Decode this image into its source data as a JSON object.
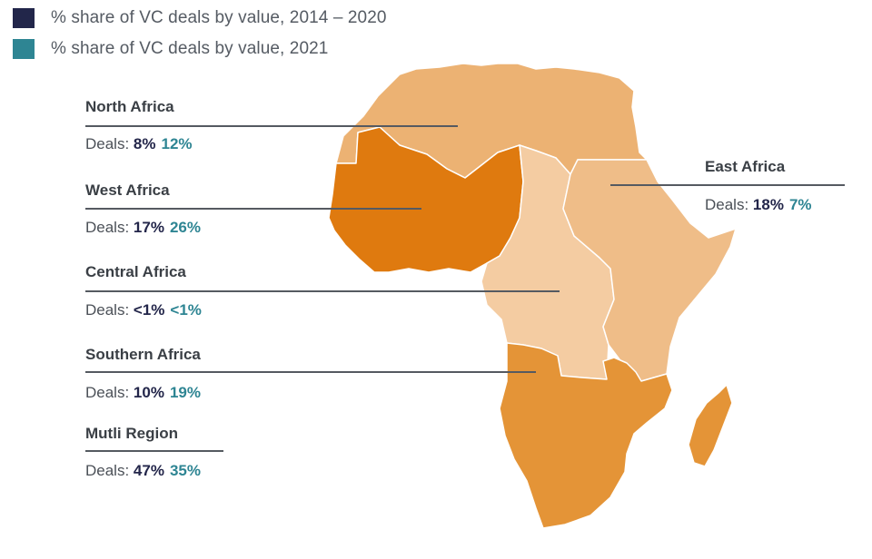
{
  "legend": [
    {
      "label": "% share of VC deals by value, 2014 – 2020",
      "color": "#22264a"
    },
    {
      "label": "% share of VC deals by value, 2021",
      "color": "#2e8593"
    }
  ],
  "regions": {
    "north": {
      "name": "North Africa",
      "deals_label": "Deals:",
      "v2014_2020": "8%",
      "v2021": "12%",
      "color": "#ecb273"
    },
    "west": {
      "name": "West Africa",
      "deals_label": "Deals:",
      "v2014_2020": "17%",
      "v2021": "26%",
      "color": "#df7a0f"
    },
    "central": {
      "name": "Central Africa",
      "deals_label": "Deals:",
      "v2014_2020": "<1%",
      "v2021": "<1%",
      "color": "#f4cca2"
    },
    "southern": {
      "name": "Southern Africa",
      "deals_label": "Deals:",
      "v2014_2020": "10%",
      "v2021": "19%",
      "color": "#e49437"
    },
    "multi": {
      "name": "Mutli Region",
      "deals_label": "Deals:",
      "v2014_2020": "47%",
      "v2021": "35%"
    },
    "east": {
      "name": "East Africa",
      "deals_label": "Deals:",
      "v2014_2020": "18%",
      "v2021": "7%",
      "color": "#efbd88"
    }
  }
}
